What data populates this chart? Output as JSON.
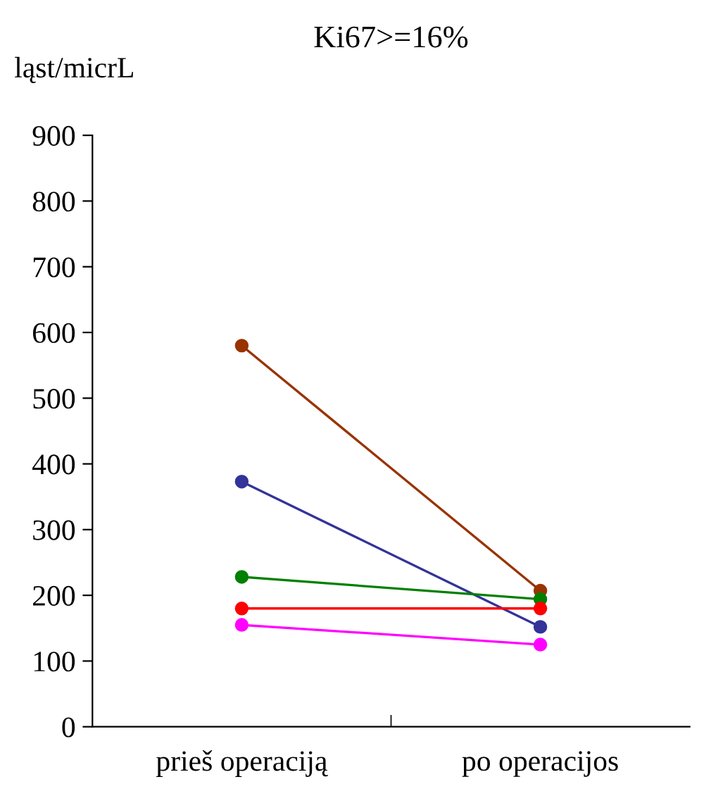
{
  "chart_data": {
    "type": "line",
    "title": "Ki67>=16%",
    "ylabel": "ląst/micrL",
    "categories": [
      "prieš operaciją",
      "po operacijos"
    ],
    "series": [
      {
        "color": "#993300",
        "values": [
          580,
          207
        ]
      },
      {
        "color": "#333399",
        "values": [
          373,
          152
        ]
      },
      {
        "color": "#008000",
        "values": [
          228,
          194
        ]
      },
      {
        "color": "#ff0000",
        "values": [
          180,
          180
        ]
      },
      {
        "color": "#ff00ff",
        "values": [
          155,
          125
        ]
      }
    ],
    "ylim": [
      0,
      900
    ],
    "yticks": [
      0,
      100,
      200,
      300,
      400,
      500,
      600,
      700,
      800,
      900
    ],
    "marker": "circle",
    "line_style": "solid",
    "grid": false,
    "legend": false
  }
}
